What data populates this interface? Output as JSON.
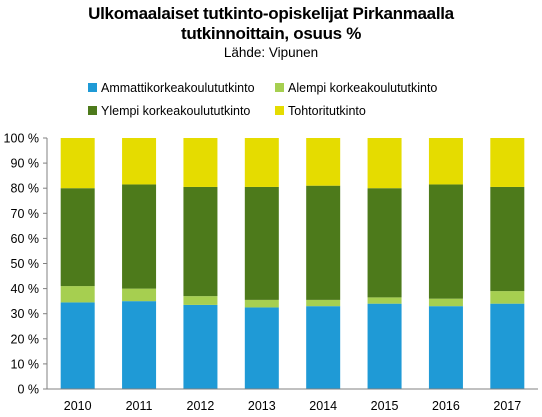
{
  "chart_data": {
    "type": "bar",
    "stacked": true,
    "title": "Ulkomaalaiset tutkinto-opiskelijat Pirkanmaalla tutkinnoittain, osuus %",
    "title_line1": "Ulkomaalaiset tutkinto-opiskelijat Pirkanmaalla",
    "title_line2": "tutkinnoittain, osuus %",
    "subtitle": "Lähde: Vipunen",
    "categories": [
      "2010",
      "2011",
      "2012",
      "2013",
      "2014",
      "2015",
      "2016",
      "2017"
    ],
    "ylim": [
      0,
      100
    ],
    "yticks": [
      "0 %",
      "10 %",
      "20 %",
      "30 %",
      "40 %",
      "50 %",
      "60 %",
      "70 %",
      "80 %",
      "90 %",
      "100 %"
    ],
    "legend_placement": "top",
    "series": [
      {
        "name": "Ammattikorkeakoulututkinto",
        "color": "#1f9ad6",
        "values": [
          34.5,
          35,
          33.5,
          32.5,
          33,
          34,
          33,
          34
        ]
      },
      {
        "name": "Alempi korkeakoulututkinto",
        "color": "#a6cf50",
        "values": [
          6.5,
          5,
          3.5,
          3,
          2.5,
          2.5,
          3,
          5
        ]
      },
      {
        "name": "Ylempi korkeakoulututkinto",
        "color": "#4d7a1b",
        "values": [
          39,
          41.5,
          43.5,
          45,
          45.5,
          43.5,
          45.5,
          41.5
        ]
      },
      {
        "name": "Tohtoritutkinto",
        "color": "#e5dc00",
        "values": [
          20,
          18.5,
          19.5,
          19.5,
          19,
          20,
          18.5,
          19.5
        ]
      }
    ]
  }
}
